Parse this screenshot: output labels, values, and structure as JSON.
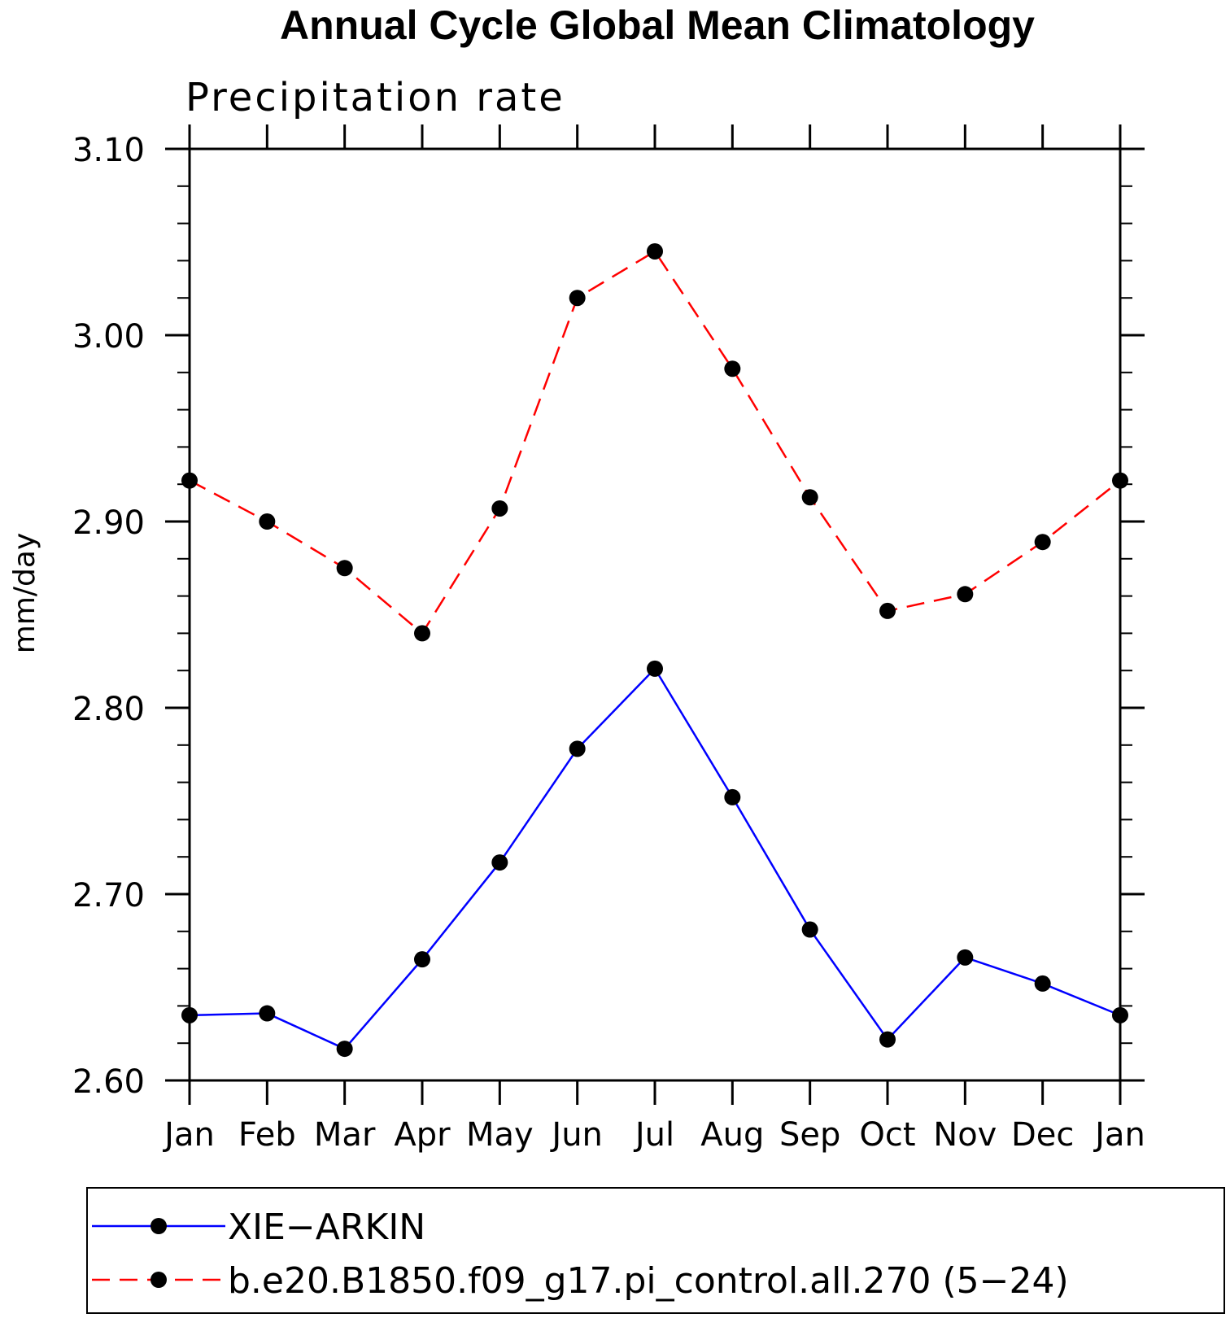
{
  "chart_data": {
    "type": "line",
    "title": "Annual Cycle Global Mean Climatology",
    "subtitle": "Precipitation rate",
    "xlabel": "",
    "ylabel": "mm/day",
    "categories": [
      "Jan",
      "Feb",
      "Mar",
      "Apr",
      "May",
      "Jun",
      "Jul",
      "Aug",
      "Sep",
      "Oct",
      "Nov",
      "Dec",
      "Jan"
    ],
    "ylim": [
      2.6,
      3.1
    ],
    "yticks": [
      "2.60",
      "2.70",
      "2.80",
      "2.90",
      "3.00",
      "3.10"
    ],
    "series": [
      {
        "name": "XIE−ARKIN",
        "color": "#0000ff",
        "line_style": "solid",
        "values": [
          2.635,
          2.636,
          2.617,
          2.665,
          2.717,
          2.778,
          2.821,
          2.752,
          2.681,
          2.622,
          2.666,
          2.652,
          2.635
        ]
      },
      {
        "name": "b.e20.B1850.f09_g17.pi_control.all.270 (5−24)",
        "color": "#ff0000",
        "line_style": "dashed",
        "values": [
          2.922,
          2.9,
          2.875,
          2.84,
          2.907,
          3.02,
          3.045,
          2.982,
          2.913,
          2.852,
          2.861,
          2.889,
          2.922
        ]
      }
    ],
    "legend_position": "bottom"
  }
}
